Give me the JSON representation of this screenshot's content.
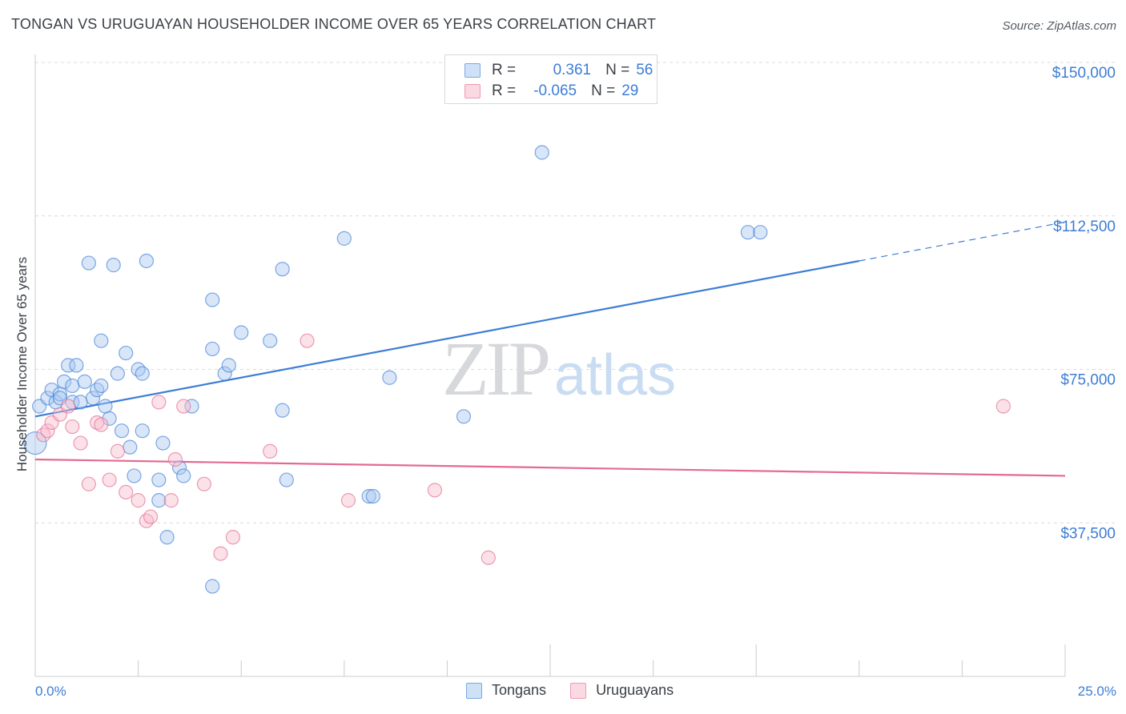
{
  "title": "TONGAN VS URUGUAYAN HOUSEHOLDER INCOME OVER 65 YEARS CORRELATION CHART",
  "source": "Source: ZipAtlas.com",
  "watermark": {
    "zip": "ZIP",
    "atlas": "atlas"
  },
  "legend": {
    "rows": [
      {
        "r_label": "R =",
        "r_value": "0.361",
        "n_label": "N =",
        "n_value": "56",
        "color": "#a8c8f0"
      },
      {
        "r_label": "R =",
        "r_value": "-0.065",
        "n_label": "N =",
        "n_value": "29",
        "color": "#f6bccb"
      }
    ]
  },
  "bottom_legend": [
    {
      "label": "Tongans",
      "color": "#a8c8f0"
    },
    {
      "label": "Uruguayans",
      "color": "#f6bccb"
    }
  ],
  "chart_data": {
    "type": "scatter",
    "title": "TONGAN VS URUGUAYAN HOUSEHOLDER INCOME OVER 65 YEARS CORRELATION CHART",
    "xlabel": "",
    "ylabel": "Householder Income Over 65 years",
    "xlim": [
      0,
      25
    ],
    "ylim": [
      0,
      150000
    ],
    "x_tick_labels": [
      "0.0%",
      "25.0%"
    ],
    "y_ticks": [
      37500,
      75000,
      112500,
      150000
    ],
    "y_tick_labels": [
      "$37,500",
      "$75,000",
      "$112,500",
      "$150,000"
    ],
    "grid": "horizontal dashed",
    "series": [
      {
        "name": "Tongans",
        "color": "#3d7dd6",
        "fill": "#a8c8f0",
        "points": [
          [
            0.1,
            66000
          ],
          [
            0.3,
            68000
          ],
          [
            0.4,
            70000
          ],
          [
            0.5,
            67000
          ],
          [
            0.6,
            69000
          ],
          [
            0.6,
            68000
          ],
          [
            0.7,
            72000
          ],
          [
            0.8,
            76000
          ],
          [
            0.9,
            71000
          ],
          [
            0.9,
            67000
          ],
          [
            1.0,
            76000
          ],
          [
            1.1,
            67000
          ],
          [
            1.2,
            72000
          ],
          [
            1.4,
            68000
          ],
          [
            1.5,
            70000
          ],
          [
            1.6,
            71000
          ],
          [
            1.6,
            82000
          ],
          [
            1.7,
            66000
          ],
          [
            1.8,
            63000
          ],
          [
            1.3,
            101000
          ],
          [
            1.9,
            100500
          ],
          [
            2.0,
            74000
          ],
          [
            2.1,
            60000
          ],
          [
            2.2,
            79000
          ],
          [
            2.3,
            56000
          ],
          [
            2.4,
            49000
          ],
          [
            2.5,
            75000
          ],
          [
            2.6,
            74000
          ],
          [
            2.6,
            60000
          ],
          [
            2.7,
            101500
          ],
          [
            3.0,
            48000
          ],
          [
            3.1,
            57000
          ],
          [
            3.2,
            34000
          ],
          [
            3.0,
            43000
          ],
          [
            3.5,
            51000
          ],
          [
            3.6,
            49000
          ],
          [
            3.8,
            66000
          ],
          [
            4.3,
            22000
          ],
          [
            4.3,
            92000
          ],
          [
            4.3,
            80000
          ],
          [
            4.6,
            74000
          ],
          [
            4.7,
            76000
          ],
          [
            5.0,
            84000
          ],
          [
            5.7,
            82000
          ],
          [
            6.0,
            65000
          ],
          [
            6.0,
            99500
          ],
          [
            6.1,
            48000
          ],
          [
            7.5,
            107000
          ],
          [
            8.1,
            44000
          ],
          [
            8.2,
            44000
          ],
          [
            8.6,
            73000
          ],
          [
            10.4,
            63500
          ],
          [
            12.3,
            128000
          ],
          [
            17.3,
            108500
          ],
          [
            17.6,
            108500
          ],
          [
            0.0,
            57000
          ]
        ],
        "trend": {
          "x": [
            0,
            25
          ],
          "y": [
            63500,
            111000
          ],
          "solid_until_x": 20.0
        }
      },
      {
        "name": "Uruguayans",
        "color": "#e36a92",
        "fill": "#f6bccb",
        "points": [
          [
            0.2,
            59000
          ],
          [
            0.3,
            60000
          ],
          [
            0.4,
            62000
          ],
          [
            0.6,
            64000
          ],
          [
            0.8,
            66000
          ],
          [
            0.9,
            61000
          ],
          [
            1.1,
            57000
          ],
          [
            1.3,
            47000
          ],
          [
            1.5,
            62000
          ],
          [
            1.6,
            61500
          ],
          [
            1.8,
            48000
          ],
          [
            2.0,
            55000
          ],
          [
            2.2,
            45000
          ],
          [
            2.5,
            43000
          ],
          [
            2.7,
            38000
          ],
          [
            2.8,
            39000
          ],
          [
            3.0,
            67000
          ],
          [
            3.3,
            43000
          ],
          [
            3.4,
            53000
          ],
          [
            3.6,
            66000
          ],
          [
            4.1,
            47000
          ],
          [
            4.5,
            30000
          ],
          [
            4.8,
            34000
          ],
          [
            5.7,
            55000
          ],
          [
            6.6,
            82000
          ],
          [
            7.6,
            43000
          ],
          [
            9.7,
            45500
          ],
          [
            11.0,
            29000
          ],
          [
            23.5,
            66000
          ]
        ],
        "trend": {
          "x": [
            0,
            25
          ],
          "y": [
            53000,
            49000
          ],
          "solid_until_x": 25.0
        }
      }
    ]
  }
}
